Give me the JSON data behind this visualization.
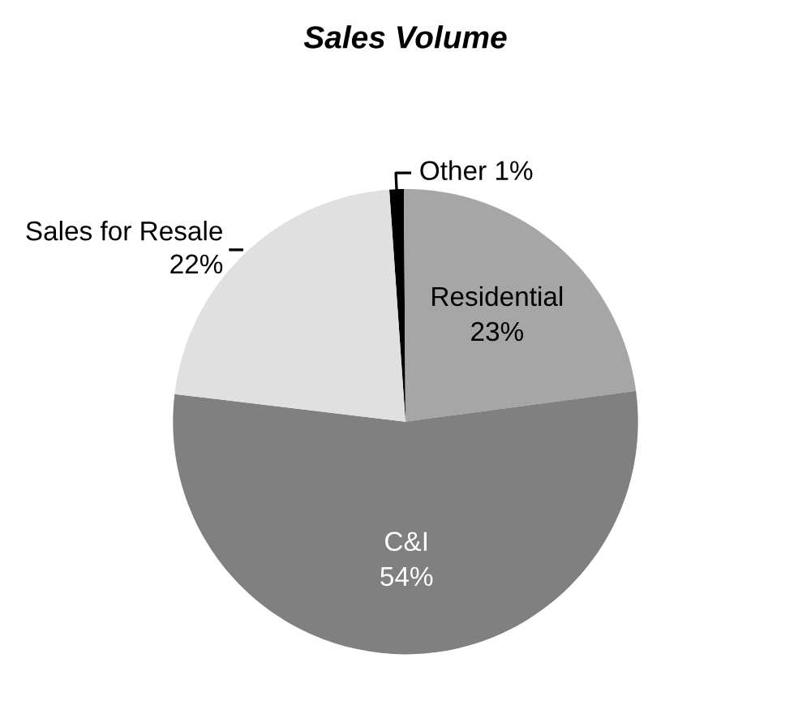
{
  "chart_data": {
    "type": "pie",
    "title": "Sales Volume",
    "categories": [
      "Other",
      "Residential",
      "C&I",
      "Sales for Resale"
    ],
    "values": [
      1,
      23,
      54,
      22
    ],
    "value_labels": [
      "1%",
      "23%",
      "54%",
      "22%"
    ],
    "colors": [
      "#000000",
      "#a6a6a6",
      "#808080",
      "#e0e0e0"
    ]
  }
}
